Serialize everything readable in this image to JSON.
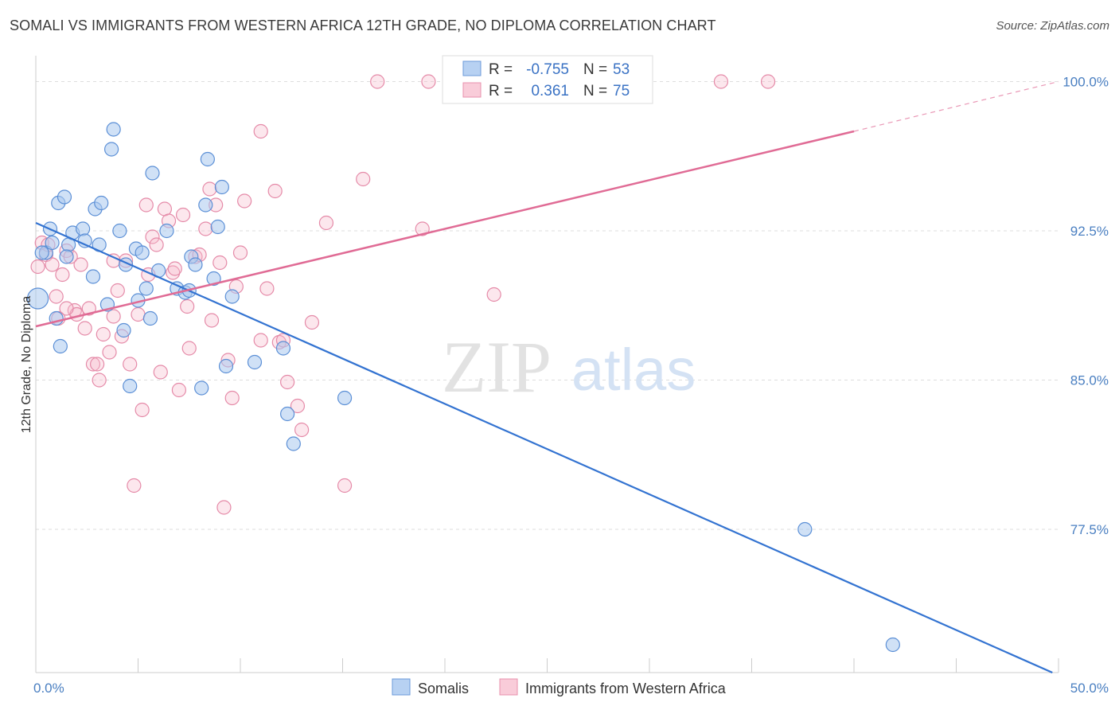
{
  "title": "SOMALI VS IMMIGRANTS FROM WESTERN AFRICA 12TH GRADE, NO DIPLOMA CORRELATION CHART",
  "source": "Source: ZipAtlas.com",
  "watermark": {
    "zip": "ZIP",
    "atlas": "atlas"
  },
  "legend_top": {
    "r_label": "R =",
    "n_label": "N =",
    "rows": [
      {
        "series": "Somalis",
        "r": "-0.755",
        "n": "53"
      },
      {
        "series": "Immigrants from Western Africa",
        "r": "0.361",
        "n": "75"
      }
    ]
  },
  "colors": {
    "somalis_fill": "#a9c8ef",
    "somalis_stroke": "#5b8fd6",
    "somalis_line": "#3373d1",
    "waf_fill": "#f6b9cc",
    "waf_stroke": "#e58aa8",
    "waf_line": "#e06b95",
    "grid": "#dedede",
    "axis": "#cccccc",
    "tick_text": "#4a7fc1"
  },
  "chart_data": {
    "type": "scatter",
    "title": "SOMALI VS IMMIGRANTS FROM WESTERN AFRICA 12TH GRADE, NO DIPLOMA CORRELATION CHART",
    "xlabel": "",
    "ylabel": "12th Grade, No Diploma",
    "xlim": [
      0,
      50
    ],
    "ylim": [
      70.3,
      101.3
    ],
    "x_tick_labels": [
      "0.0%",
      "50.0%"
    ],
    "y_ticks": [
      77.5,
      85.0,
      92.5,
      100.0
    ],
    "y_tick_labels": [
      "77.5%",
      "85.0%",
      "92.5%",
      "100.0%"
    ],
    "grid": true,
    "legend_placement": "bottom",
    "series": [
      {
        "name": "Somalis",
        "trend": {
          "x": [
            0,
            49.7
          ],
          "y": [
            92.9,
            70.3
          ]
        },
        "points": [
          [
            0.1,
            89.1
          ],
          [
            0.5,
            91.4
          ],
          [
            0.7,
            92.6
          ],
          [
            0.8,
            91.9
          ],
          [
            1.0,
            88.1
          ],
          [
            1.2,
            86.7
          ],
          [
            1.1,
            93.9
          ],
          [
            1.4,
            94.2
          ],
          [
            1.6,
            91.8
          ],
          [
            1.5,
            91.2
          ],
          [
            1.8,
            92.4
          ],
          [
            2.3,
            92.6
          ],
          [
            2.4,
            92.0
          ],
          [
            2.8,
            90.2
          ],
          [
            2.9,
            93.6
          ],
          [
            3.1,
            91.8
          ],
          [
            3.2,
            93.9
          ],
          [
            3.5,
            88.8
          ],
          [
            3.7,
            96.6
          ],
          [
            3.8,
            97.6
          ],
          [
            4.1,
            92.5
          ],
          [
            4.3,
            87.5
          ],
          [
            4.4,
            90.8
          ],
          [
            4.6,
            84.7
          ],
          [
            4.9,
            91.6
          ],
          [
            5.0,
            89.0
          ],
          [
            5.2,
            91.4
          ],
          [
            5.4,
            89.6
          ],
          [
            5.6,
            88.1
          ],
          [
            5.7,
            95.4
          ],
          [
            6.0,
            90.5
          ],
          [
            6.4,
            92.5
          ],
          [
            6.9,
            89.6
          ],
          [
            7.3,
            89.4
          ],
          [
            7.5,
            89.5
          ],
          [
            7.6,
            91.2
          ],
          [
            7.8,
            90.8
          ],
          [
            8.1,
            84.6
          ],
          [
            8.3,
            93.8
          ],
          [
            8.4,
            96.1
          ],
          [
            8.7,
            90.1
          ],
          [
            8.9,
            92.7
          ],
          [
            9.1,
            94.7
          ],
          [
            9.3,
            85.7
          ],
          [
            9.6,
            89.2
          ],
          [
            10.7,
            85.9
          ],
          [
            12.1,
            86.6
          ],
          [
            12.3,
            83.3
          ],
          [
            12.6,
            81.8
          ],
          [
            15.1,
            84.1
          ],
          [
            37.6,
            77.5
          ],
          [
            41.9,
            71.7
          ],
          [
            0.3,
            91.4
          ]
        ]
      },
      {
        "name": "Immigrants from Western Africa",
        "trend": {
          "x": [
            0,
            40
          ],
          "y": [
            87.7,
            97.5
          ]
        },
        "trend_dashed": {
          "x": [
            40,
            50
          ],
          "y": [
            97.5,
            100.0
          ]
        },
        "points": [
          [
            0.1,
            90.7
          ],
          [
            0.3,
            91.9
          ],
          [
            0.5,
            91.3
          ],
          [
            0.6,
            91.8
          ],
          [
            0.8,
            90.8
          ],
          [
            1.0,
            89.2
          ],
          [
            1.1,
            88.1
          ],
          [
            1.3,
            90.3
          ],
          [
            1.5,
            91.5
          ],
          [
            1.7,
            91.2
          ],
          [
            1.9,
            88.5
          ],
          [
            2.0,
            88.3
          ],
          [
            2.2,
            90.8
          ],
          [
            2.4,
            87.6
          ],
          [
            2.6,
            88.6
          ],
          [
            2.8,
            85.8
          ],
          [
            3.0,
            85.8
          ],
          [
            3.1,
            85.0
          ],
          [
            3.3,
            87.3
          ],
          [
            3.6,
            86.4
          ],
          [
            3.8,
            88.2
          ],
          [
            4.0,
            89.5
          ],
          [
            4.2,
            87.2
          ],
          [
            4.4,
            91.0
          ],
          [
            4.6,
            85.8
          ],
          [
            4.8,
            79.7
          ],
          [
            5.0,
            88.3
          ],
          [
            5.2,
            83.5
          ],
          [
            5.4,
            93.8
          ],
          [
            5.5,
            90.3
          ],
          [
            5.7,
            92.2
          ],
          [
            5.9,
            91.8
          ],
          [
            6.1,
            85.4
          ],
          [
            6.3,
            93.6
          ],
          [
            6.5,
            93.0
          ],
          [
            6.7,
            90.4
          ],
          [
            7.0,
            84.5
          ],
          [
            7.2,
            93.3
          ],
          [
            7.4,
            88.7
          ],
          [
            7.5,
            86.6
          ],
          [
            7.8,
            91.2
          ],
          [
            8.0,
            91.3
          ],
          [
            8.3,
            92.6
          ],
          [
            8.5,
            94.6
          ],
          [
            8.6,
            88.0
          ],
          [
            8.8,
            93.8
          ],
          [
            9.0,
            90.9
          ],
          [
            9.2,
            78.6
          ],
          [
            9.4,
            86.0
          ],
          [
            9.6,
            84.1
          ],
          [
            9.8,
            89.7
          ],
          [
            10.0,
            91.4
          ],
          [
            10.2,
            94.0
          ],
          [
            11.0,
            87.0
          ],
          [
            11.3,
            89.6
          ],
          [
            11.0,
            97.5
          ],
          [
            11.7,
            94.5
          ],
          [
            11.9,
            86.9
          ],
          [
            12.1,
            87.0
          ],
          [
            12.3,
            84.9
          ],
          [
            12.8,
            83.7
          ],
          [
            13.0,
            82.5
          ],
          [
            13.5,
            87.9
          ],
          [
            14.2,
            92.9
          ],
          [
            15.1,
            79.7
          ],
          [
            16.0,
            95.1
          ],
          [
            16.7,
            100.0
          ],
          [
            19.2,
            100.0
          ],
          [
            18.9,
            92.6
          ],
          [
            22.4,
            89.3
          ],
          [
            33.5,
            100.0
          ],
          [
            35.8,
            100.0
          ],
          [
            3.8,
            91.0
          ],
          [
            6.8,
            90.6
          ],
          [
            1.5,
            88.6
          ]
        ]
      }
    ]
  }
}
